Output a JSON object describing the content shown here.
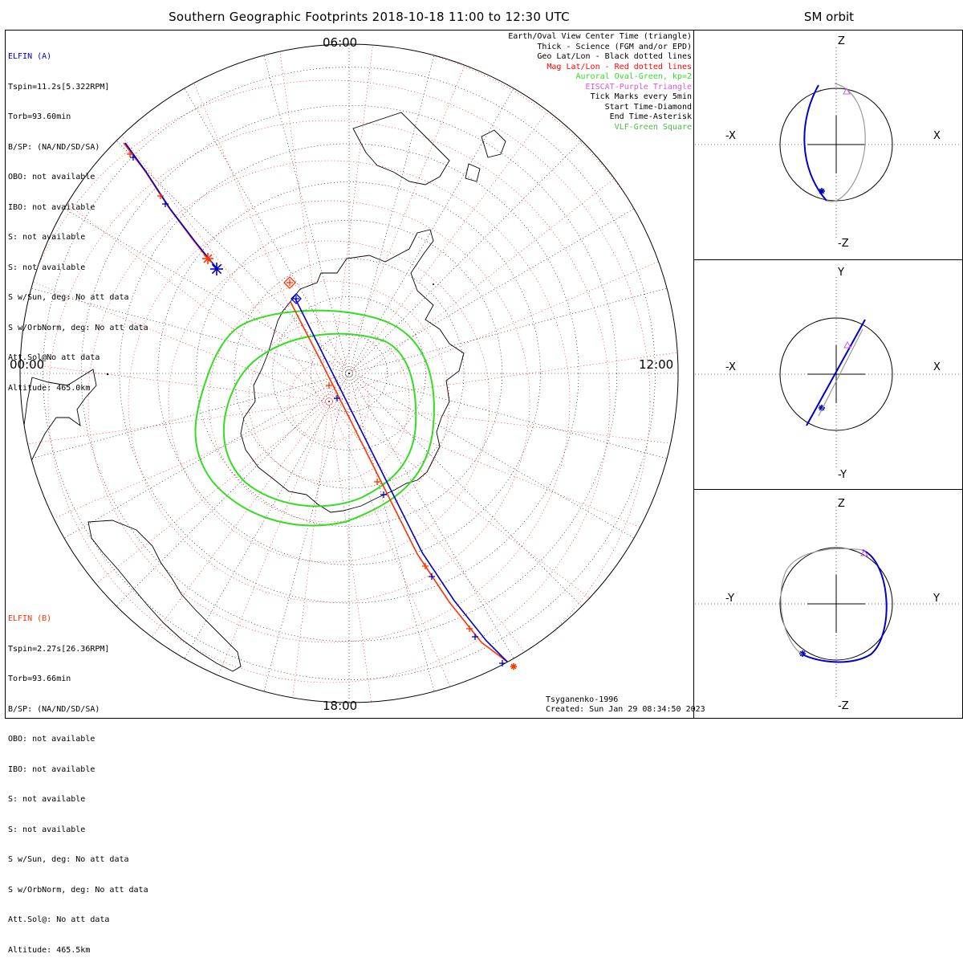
{
  "colors": {
    "elfin_a": "#0000cc",
    "elfin_b": "#ff3300",
    "geo_grid": "#000000",
    "mag_grid": "#ff0000",
    "aurora": "#33dd22",
    "eiscat": "#dd55dd",
    "vlf": "#44bb44"
  },
  "header": {
    "title": "Southern Geographic Footprints 2018-10-18 11:00 to 12:30 UTC",
    "sm_title": "SM orbit"
  },
  "map": {
    "hours": {
      "top": "06:00",
      "left": "00:00",
      "right": "12:00",
      "bottom": "18:00"
    }
  },
  "elfin_a": {
    "name": "ELFIN (A)",
    "lines": [
      "Tspin=11.2s[5.322RPM]",
      "Torb=93.60min",
      "B/SP: (NA/ND/SD/SA)",
      "OBO: not available",
      "IBO: not available",
      "S: not available",
      "S: not available",
      "S w/Sun, deg: No att data",
      "S w/OrbNorm, deg: No att data",
      "Att.Sol@No att data",
      "Altitude: 465.0km"
    ]
  },
  "elfin_b": {
    "name": "ELFIN (B)",
    "lines": [
      "Tspin=2.27s[26.36RPM]",
      "Torb=93.66min",
      "B/SP: (NA/ND/SD/SA)",
      "OBO: not available",
      "IBO: not available",
      "S: not available",
      "S: not available",
      "S w/Sun, deg: No att data",
      "S w/OrbNorm, deg: No att data",
      "Att.Sol@: No att data",
      "Altitude: 465.5km"
    ]
  },
  "legend": [
    {
      "text": "Earth/Oval View Center Time (triangle)",
      "color": "#000000"
    },
    {
      "text": "Thick - Science (FGM and/or EPD)",
      "color": "#000000"
    },
    {
      "text": "Geo Lat/Lon - Black dotted lines",
      "color": "#000000"
    },
    {
      "text": "Mag Lat/Lon - Red dotted lines",
      "color": "#ff0000"
    },
    {
      "text": "Auroral Oval-Green, kp=2",
      "color": "#33dd22"
    },
    {
      "text": "EISCAT-Purple Triangle",
      "color": "#dd55dd"
    },
    {
      "text": "Tick Marks every 5min",
      "color": "#000000"
    },
    {
      "text": "Start Time-Diamond",
      "color": "#000000"
    },
    {
      "text": "End Time-Asterisk",
      "color": "#000000"
    },
    {
      "text": "VLF-Green Square",
      "color": "#44bb44"
    }
  ],
  "footer": {
    "model": "Tsyganenko-1996",
    "created": "Created: Sun Jan 29 08:34:50 2023"
  },
  "sm_panels": [
    {
      "top": "Z",
      "bottom": "-Z",
      "left": "-X",
      "right": "X"
    },
    {
      "top": "Y",
      "bottom": "-Y",
      "left": "-X",
      "right": "X"
    },
    {
      "top": "Z",
      "bottom": "-Z",
      "left": "-Y",
      "right": "Y"
    }
  ]
}
